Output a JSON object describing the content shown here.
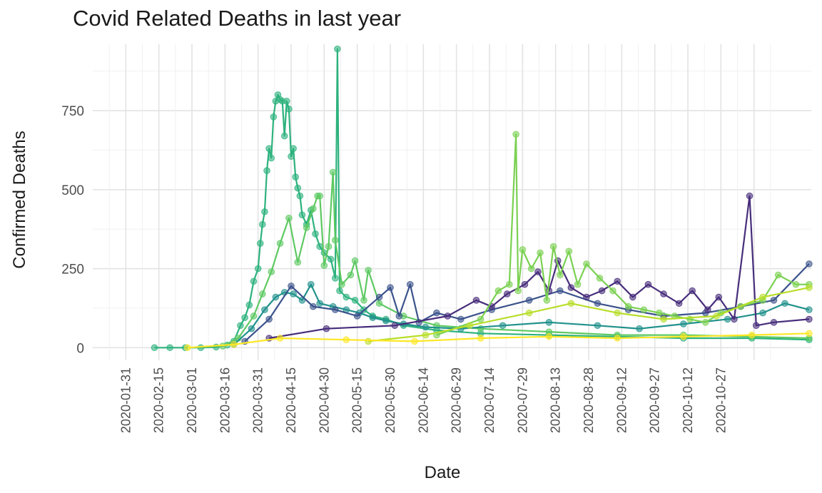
{
  "chart_data": {
    "type": "line",
    "title": "Covid Related Deaths in last year",
    "xlabel": "Date",
    "ylabel": "Confirmed Deaths",
    "x_range": [
      "2020-01-16",
      "2020-12-07"
    ],
    "ylim": [
      -40,
      960
    ],
    "y_ticks": [
      0,
      250,
      500,
      750
    ],
    "x_ticks": [
      "2020-01-31",
      "2020-02-15",
      "2020-03-01",
      "2020-03-16",
      "2020-03-31",
      "2020-04-15",
      "2020-04-30",
      "2020-05-15",
      "2020-05-30",
      "2020-06-14",
      "2020-06-29",
      "2020-07-14",
      "2020-07-29",
      "2020-08-13",
      "2020-08-28",
      "2020-09-12",
      "2020-09-27",
      "2020-10-12",
      "2020-10-27"
    ],
    "grid": true,
    "legend": "none",
    "series": [
      {
        "color": "#2db27d",
        "points": [
          [
            "2020-02-13",
            0
          ],
          [
            "2020-02-20",
            0
          ],
          [
            "2020-02-27",
            0
          ],
          [
            "2020-03-05",
            0
          ],
          [
            "2020-03-12",
            2
          ],
          [
            "2020-03-17",
            8
          ],
          [
            "2020-03-20",
            20
          ],
          [
            "2020-03-23",
            70
          ],
          [
            "2020-03-25",
            95
          ],
          [
            "2020-03-27",
            135
          ],
          [
            "2020-03-29",
            210
          ],
          [
            "2020-03-31",
            250
          ],
          [
            "2020-04-01",
            330
          ],
          [
            "2020-04-02",
            390
          ],
          [
            "2020-04-03",
            430
          ],
          [
            "2020-04-04",
            560
          ],
          [
            "2020-04-05",
            630
          ],
          [
            "2020-04-06",
            600
          ],
          [
            "2020-04-07",
            730
          ],
          [
            "2020-04-08",
            780
          ],
          [
            "2020-04-09",
            800
          ],
          [
            "2020-04-10",
            785
          ],
          [
            "2020-04-11",
            780
          ],
          [
            "2020-04-12",
            670
          ],
          [
            "2020-04-13",
            780
          ],
          [
            "2020-04-14",
            755
          ],
          [
            "2020-04-15",
            605
          ],
          [
            "2020-04-16",
            630
          ],
          [
            "2020-04-17",
            540
          ],
          [
            "2020-04-18",
            505
          ],
          [
            "2020-04-19",
            480
          ],
          [
            "2020-04-20",
            420
          ],
          [
            "2020-04-22",
            390
          ],
          [
            "2020-04-24",
            435
          ],
          [
            "2020-04-26",
            360
          ],
          [
            "2020-04-28",
            320
          ],
          [
            "2020-04-30",
            300
          ],
          [
            "2020-05-03",
            280
          ],
          [
            "2020-05-05",
            220
          ],
          [
            "2020-05-06",
            945
          ],
          [
            "2020-05-07",
            180
          ],
          [
            "2020-05-10",
            160
          ],
          [
            "2020-05-14",
            150
          ],
          [
            "2020-05-18",
            120
          ],
          [
            "2020-05-22",
            100
          ],
          [
            "2020-05-28",
            90
          ],
          [
            "2020-06-05",
            70
          ],
          [
            "2020-06-20",
            55
          ],
          [
            "2020-07-10",
            45
          ],
          [
            "2020-08-10",
            40
          ],
          [
            "2020-09-10",
            35
          ],
          [
            "2020-10-10",
            30
          ],
          [
            "2020-11-10",
            30
          ],
          [
            "2020-12-06",
            25
          ]
        ]
      },
      {
        "color": "#5ec962",
        "points": [
          [
            "2020-03-15",
            5
          ],
          [
            "2020-03-22",
            30
          ],
          [
            "2020-03-29",
            100
          ],
          [
            "2020-04-02",
            170
          ],
          [
            "2020-04-06",
            240
          ],
          [
            "2020-04-10",
            330
          ],
          [
            "2020-04-14",
            410
          ],
          [
            "2020-04-18",
            270
          ],
          [
            "2020-04-22",
            380
          ],
          [
            "2020-04-25",
            440
          ],
          [
            "2020-04-27",
            480
          ],
          [
            "2020-04-28",
            480
          ],
          [
            "2020-04-30",
            260
          ],
          [
            "2020-05-02",
            320
          ],
          [
            "2020-05-04",
            555
          ],
          [
            "2020-05-05",
            340
          ],
          [
            "2020-05-08",
            200
          ],
          [
            "2020-05-12",
            230
          ],
          [
            "2020-05-14",
            275
          ],
          [
            "2020-05-18",
            150
          ],
          [
            "2020-05-20",
            245
          ],
          [
            "2020-05-25",
            140
          ],
          [
            "2020-06-05",
            100
          ],
          [
            "2020-06-20",
            70
          ],
          [
            "2020-07-10",
            60
          ],
          [
            "2020-08-10",
            50
          ],
          [
            "2020-09-10",
            40
          ],
          [
            "2020-10-10",
            40
          ],
          [
            "2020-11-10",
            35
          ],
          [
            "2020-12-06",
            30
          ]
        ]
      },
      {
        "color": "#21918c",
        "points": [
          [
            "2020-03-20",
            10
          ],
          [
            "2020-03-28",
            60
          ],
          [
            "2020-04-03",
            120
          ],
          [
            "2020-04-08",
            160
          ],
          [
            "2020-04-12",
            175
          ],
          [
            "2020-04-16",
            170
          ],
          [
            "2020-04-20",
            150
          ],
          [
            "2020-04-24",
            200
          ],
          [
            "2020-04-28",
            140
          ],
          [
            "2020-05-04",
            130
          ],
          [
            "2020-05-10",
            120
          ],
          [
            "2020-05-16",
            110
          ],
          [
            "2020-05-22",
            95
          ],
          [
            "2020-05-28",
            85
          ],
          [
            "2020-06-05",
            75
          ],
          [
            "2020-06-15",
            65
          ],
          [
            "2020-07-01",
            60
          ],
          [
            "2020-07-20",
            70
          ],
          [
            "2020-08-10",
            80
          ],
          [
            "2020-09-01",
            70
          ],
          [
            "2020-09-20",
            60
          ],
          [
            "2020-10-10",
            75
          ],
          [
            "2020-10-30",
            90
          ],
          [
            "2020-11-15",
            110
          ],
          [
            "2020-11-25",
            140
          ],
          [
            "2020-12-06",
            120
          ]
        ]
      },
      {
        "color": "#3b528b",
        "points": [
          [
            "2020-03-25",
            20
          ],
          [
            "2020-04-05",
            90
          ],
          [
            "2020-04-15",
            195
          ],
          [
            "2020-04-25",
            130
          ],
          [
            "2020-05-05",
            120
          ],
          [
            "2020-05-15",
            100
          ],
          [
            "2020-05-25",
            160
          ],
          [
            "2020-05-30",
            190
          ],
          [
            "2020-06-03",
            100
          ],
          [
            "2020-06-08",
            200
          ],
          [
            "2020-06-12",
            80
          ],
          [
            "2020-06-20",
            110
          ],
          [
            "2020-07-01",
            90
          ],
          [
            "2020-07-15",
            120
          ],
          [
            "2020-08-01",
            150
          ],
          [
            "2020-08-15",
            180
          ],
          [
            "2020-09-01",
            140
          ],
          [
            "2020-09-15",
            120
          ],
          [
            "2020-10-01",
            100
          ],
          [
            "2020-10-20",
            110
          ],
          [
            "2020-11-05",
            130
          ],
          [
            "2020-11-20",
            150
          ],
          [
            "2020-12-06",
            265
          ]
        ]
      },
      {
        "color": "#472d7b",
        "points": [
          [
            "2020-04-05",
            30
          ],
          [
            "2020-05-01",
            60
          ],
          [
            "2020-06-01",
            70
          ],
          [
            "2020-06-25",
            100
          ],
          [
            "2020-07-08",
            150
          ],
          [
            "2020-07-15",
            130
          ],
          [
            "2020-07-22",
            170
          ],
          [
            "2020-07-30",
            200
          ],
          [
            "2020-08-05",
            240
          ],
          [
            "2020-08-10",
            180
          ],
          [
            "2020-08-14",
            275
          ],
          [
            "2020-08-20",
            190
          ],
          [
            "2020-08-27",
            160
          ],
          [
            "2020-09-03",
            180
          ],
          [
            "2020-09-10",
            210
          ],
          [
            "2020-09-17",
            160
          ],
          [
            "2020-09-24",
            200
          ],
          [
            "2020-10-01",
            170
          ],
          [
            "2020-10-08",
            140
          ],
          [
            "2020-10-14",
            180
          ],
          [
            "2020-10-21",
            120
          ],
          [
            "2020-10-26",
            160
          ],
          [
            "2020-11-02",
            90
          ],
          [
            "2020-11-09",
            480
          ],
          [
            "2020-11-12",
            70
          ],
          [
            "2020-11-20",
            80
          ],
          [
            "2020-12-06",
            90
          ]
        ]
      },
      {
        "color": "#7ad151",
        "points": [
          [
            "2020-06-20",
            40
          ],
          [
            "2020-07-10",
            90
          ],
          [
            "2020-07-18",
            180
          ],
          [
            "2020-07-23",
            200
          ],
          [
            "2020-07-26",
            675
          ],
          [
            "2020-07-27",
            180
          ],
          [
            "2020-07-29",
            310
          ],
          [
            "2020-08-02",
            250
          ],
          [
            "2020-08-06",
            300
          ],
          [
            "2020-08-09",
            150
          ],
          [
            "2020-08-12",
            320
          ],
          [
            "2020-08-15",
            230
          ],
          [
            "2020-08-19",
            305
          ],
          [
            "2020-08-23",
            200
          ],
          [
            "2020-08-27",
            265
          ],
          [
            "2020-09-02",
            220
          ],
          [
            "2020-09-08",
            180
          ],
          [
            "2020-09-15",
            130
          ],
          [
            "2020-09-22",
            120
          ],
          [
            "2020-09-29",
            110
          ],
          [
            "2020-10-06",
            100
          ],
          [
            "2020-10-13",
            90
          ],
          [
            "2020-10-20",
            80
          ],
          [
            "2020-10-27",
            110
          ],
          [
            "2020-11-05",
            130
          ],
          [
            "2020-11-15",
            150
          ],
          [
            "2020-11-22",
            230
          ],
          [
            "2020-11-30",
            200
          ],
          [
            "2020-12-06",
            200
          ]
        ]
      },
      {
        "color": "#b8de29",
        "points": [
          [
            "2020-05-20",
            20
          ],
          [
            "2020-06-15",
            40
          ],
          [
            "2020-07-05",
            70
          ],
          [
            "2020-08-01",
            110
          ],
          [
            "2020-08-20",
            140
          ],
          [
            "2020-09-10",
            110
          ],
          [
            "2020-10-01",
            90
          ],
          [
            "2020-10-25",
            100
          ],
          [
            "2020-11-15",
            160
          ],
          [
            "2020-12-06",
            190
          ]
        ]
      },
      {
        "color": "#fde725",
        "points": [
          [
            "2020-02-28",
            0
          ],
          [
            "2020-03-20",
            10
          ],
          [
            "2020-04-10",
            30
          ],
          [
            "2020-05-10",
            25
          ],
          [
            "2020-06-10",
            20
          ],
          [
            "2020-07-10",
            30
          ],
          [
            "2020-08-10",
            35
          ],
          [
            "2020-09-10",
            30
          ],
          [
            "2020-10-10",
            35
          ],
          [
            "2020-11-10",
            40
          ],
          [
            "2020-12-06",
            45
          ]
        ]
      }
    ]
  }
}
